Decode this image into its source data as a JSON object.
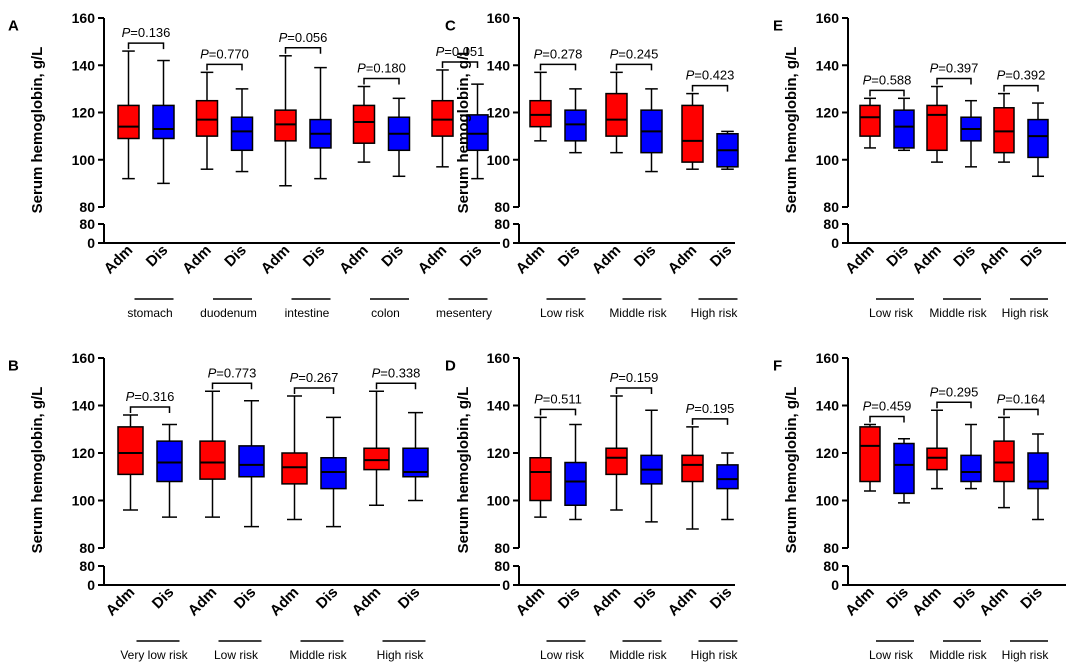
{
  "figure": {
    "colors": {
      "adm": "#ff0000",
      "dis": "#0000ff",
      "axis": "#000000"
    },
    "box_labels": [
      "Adm",
      "Dis"
    ],
    "p_prefix": "P",
    "break_ticks": [
      "80",
      "0"
    ]
  },
  "chart_data": [
    {
      "panel": "A",
      "type": "box",
      "ylabel": "Serum hemoglobin, g/L",
      "yticks": [
        "80",
        "100",
        "120",
        "140",
        "160"
      ],
      "ylim": [
        80,
        160
      ],
      "groups": [
        {
          "label": "stomach",
          "p": "=0.136",
          "adm": {
            "min": 92,
            "q1": 109,
            "median": 114,
            "q3": 123,
            "max": 146
          },
          "dis": {
            "min": 90,
            "q1": 109,
            "median": 113,
            "q3": 123,
            "max": 142
          }
        },
        {
          "label": "duodenum",
          "p": "=0.770",
          "adm": {
            "min": 96,
            "q1": 110,
            "median": 117,
            "q3": 125,
            "max": 137
          },
          "dis": {
            "min": 95,
            "q1": 104,
            "median": 112,
            "q3": 118,
            "max": 130
          }
        },
        {
          "label": "intestine",
          "p": "=0.056",
          "adm": {
            "min": 89,
            "q1": 108,
            "median": 115,
            "q3": 121,
            "max": 144
          },
          "dis": {
            "min": 92,
            "q1": 105,
            "median": 111,
            "q3": 117,
            "max": 139
          }
        },
        {
          "label": "colon",
          "p": "=0.180",
          "adm": {
            "min": 99,
            "q1": 107,
            "median": 116,
            "q3": 123,
            "max": 131
          },
          "dis": {
            "min": 93,
            "q1": 104,
            "median": 111,
            "q3": 118,
            "max": 126
          }
        },
        {
          "label": "mesentery",
          "p": "=0.051",
          "adm": {
            "min": 97,
            "q1": 110,
            "median": 117,
            "q3": 125,
            "max": 138
          },
          "dis": {
            "min": 92,
            "q1": 104,
            "median": 111,
            "q3": 119,
            "max": 132
          }
        }
      ]
    },
    {
      "panel": "B",
      "type": "box",
      "ylabel": "Serum hemoglobin, g/L",
      "yticks": [
        "80",
        "100",
        "120",
        "140",
        "160"
      ],
      "ylim": [
        80,
        160
      ],
      "groups": [
        {
          "label": "Very low risk",
          "p": "=0.316",
          "adm": {
            "min": 96,
            "q1": 111,
            "median": 120,
            "q3": 131,
            "max": 136
          },
          "dis": {
            "min": 93,
            "q1": 108,
            "median": 116,
            "q3": 125,
            "max": 132
          }
        },
        {
          "label": "Low risk",
          "p": "=0.773",
          "adm": {
            "min": 93,
            "q1": 109,
            "median": 116,
            "q3": 125,
            "max": 146
          },
          "dis": {
            "min": 89,
            "q1": 110,
            "median": 115,
            "q3": 123,
            "max": 142
          }
        },
        {
          "label": "Middle risk",
          "p": "=0.267",
          "adm": {
            "min": 92,
            "q1": 107,
            "median": 114,
            "q3": 120,
            "max": 144
          },
          "dis": {
            "min": 89,
            "q1": 105,
            "median": 112,
            "q3": 118,
            "max": 135
          }
        },
        {
          "label": "High risk",
          "p": "=0.338",
          "adm": {
            "min": 98,
            "q1": 113,
            "median": 117,
            "q3": 122,
            "max": 146
          },
          "dis": {
            "min": 100,
            "q1": 110,
            "median": 112,
            "q3": 122,
            "max": 137
          }
        }
      ]
    },
    {
      "panel": "C",
      "type": "box",
      "ylabel": "Serum hemoglobin, g/L",
      "yticks": [
        "80",
        "100",
        "120",
        "140",
        "160"
      ],
      "ylim": [
        80,
        160
      ],
      "groups": [
        {
          "label": "Low risk",
          "p": "=0.278",
          "adm": {
            "min": 108,
            "q1": 114,
            "median": 119,
            "q3": 125,
            "max": 137
          },
          "dis": {
            "min": 103,
            "q1": 108,
            "median": 115,
            "q3": 121,
            "max": 130
          }
        },
        {
          "label": "Middle risk",
          "p": "=0.245",
          "adm": {
            "min": 103,
            "q1": 110,
            "median": 117,
            "q3": 128,
            "max": 137
          },
          "dis": {
            "min": 95,
            "q1": 103,
            "median": 112,
            "q3": 121,
            "max": 130
          }
        },
        {
          "label": "High risk",
          "p": "=0.423",
          "adm": {
            "min": 96,
            "q1": 99,
            "median": 108,
            "q3": 123,
            "max": 128
          },
          "dis": {
            "min": 96,
            "q1": 97,
            "median": 104,
            "q3": 111,
            "max": 112
          }
        }
      ]
    },
    {
      "panel": "D",
      "type": "box",
      "ylabel": "Serum hemoglobin, g/L",
      "yticks": [
        "80",
        "100",
        "120",
        "140",
        "160"
      ],
      "ylim": [
        80,
        160
      ],
      "groups": [
        {
          "label": "Low risk",
          "p": "=0.511",
          "adm": {
            "min": 93,
            "q1": 100,
            "median": 112,
            "q3": 118,
            "max": 135
          },
          "dis": {
            "min": 92,
            "q1": 98,
            "median": 108,
            "q3": 116,
            "max": 132
          }
        },
        {
          "label": "Middle risk",
          "p": "=0.159",
          "adm": {
            "min": 96,
            "q1": 111,
            "median": 118,
            "q3": 122,
            "max": 144
          },
          "dis": {
            "min": 91,
            "q1": 107,
            "median": 113,
            "q3": 119,
            "max": 138
          }
        },
        {
          "label": "High risk",
          "p": "=0.195",
          "adm": {
            "min": 88,
            "q1": 108,
            "median": 115,
            "q3": 119,
            "max": 131
          },
          "dis": {
            "min": 92,
            "q1": 105,
            "median": 109,
            "q3": 115,
            "max": 120
          }
        }
      ]
    },
    {
      "panel": "E",
      "type": "box",
      "ylabel": "Serum hemoglobin, g/L",
      "yticks": [
        "80",
        "100",
        "120",
        "140",
        "160"
      ],
      "ylim": [
        80,
        160
      ],
      "groups": [
        {
          "label": "Low risk",
          "p": "=0.588",
          "adm": {
            "min": 105,
            "q1": 110,
            "median": 118,
            "q3": 123,
            "max": 126
          },
          "dis": {
            "min": 104,
            "q1": 105,
            "median": 114,
            "q3": 121,
            "max": 126
          }
        },
        {
          "label": "Middle risk",
          "p": "=0.397",
          "adm": {
            "min": 99,
            "q1": 104,
            "median": 119,
            "q3": 123,
            "max": 131
          },
          "dis": {
            "min": 97,
            "q1": 108,
            "median": 113,
            "q3": 118,
            "max": 125
          }
        },
        {
          "label": "High risk",
          "p": "=0.392",
          "adm": {
            "min": 99,
            "q1": 103,
            "median": 112,
            "q3": 122,
            "max": 128
          },
          "dis": {
            "min": 93,
            "q1": 101,
            "median": 110,
            "q3": 117,
            "max": 124
          }
        }
      ]
    },
    {
      "panel": "F",
      "type": "box",
      "ylabel": "Serum hemoglobin, g/L",
      "yticks": [
        "80",
        "100",
        "120",
        "140",
        "160"
      ],
      "ylim": [
        80,
        160
      ],
      "groups": [
        {
          "label": "Low risk",
          "p": "=0.459",
          "adm": {
            "min": 104,
            "q1": 108,
            "median": 123,
            "q3": 131,
            "max": 132
          },
          "dis": {
            "min": 99,
            "q1": 103,
            "median": 115,
            "q3": 124,
            "max": 126
          }
        },
        {
          "label": "Middle risk",
          "p": "=0.295",
          "adm": {
            "min": 105,
            "q1": 113,
            "median": 118,
            "q3": 122,
            "max": 138
          },
          "dis": {
            "min": 105,
            "q1": 108,
            "median": 112,
            "q3": 119,
            "max": 132
          }
        },
        {
          "label": "High risk",
          "p": "=0.164",
          "adm": {
            "min": 97,
            "q1": 108,
            "median": 116,
            "q3": 125,
            "max": 135
          },
          "dis": {
            "min": 92,
            "q1": 105,
            "median": 108,
            "q3": 120,
            "max": 128
          }
        }
      ]
    }
  ]
}
